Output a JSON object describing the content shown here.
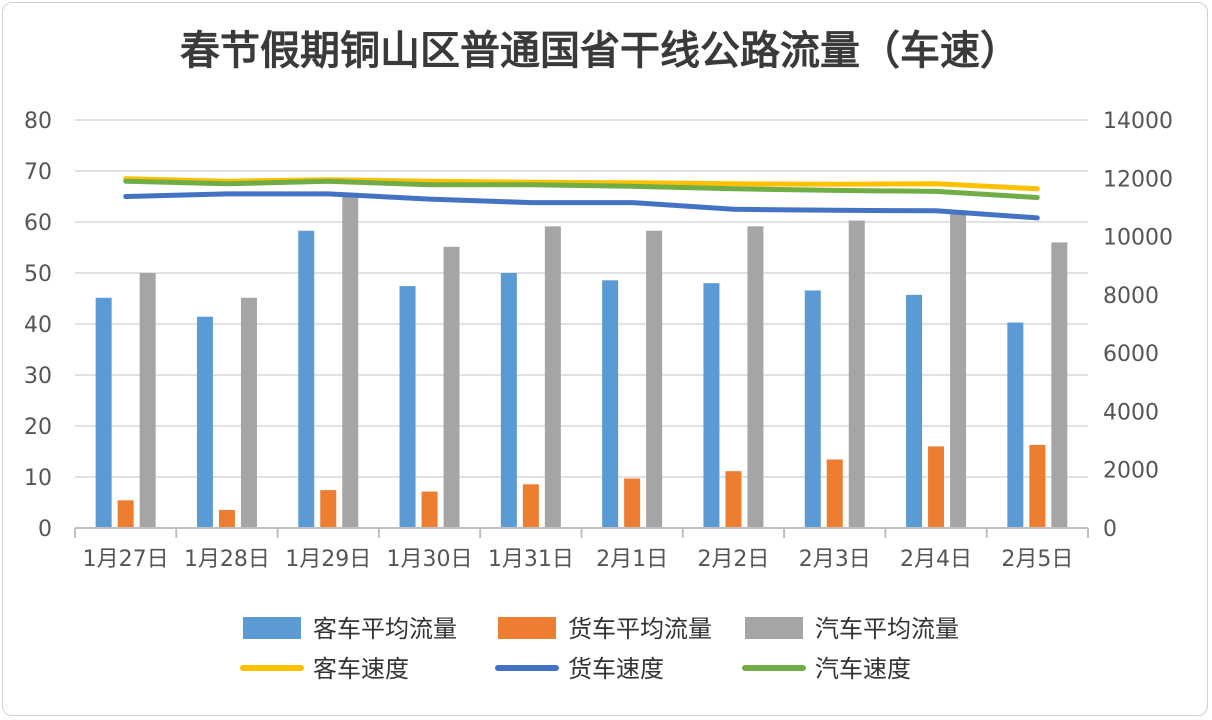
{
  "chart_data": {
    "type": "bar",
    "title": "春节假期铜山区普通国省干线公路流量（车速）",
    "categories": [
      "1月27日",
      "1月28日",
      "1月29日",
      "1月30日",
      "1月31日",
      "2月1日",
      "2月2日",
      "2月3日",
      "2月4日",
      "2月5日"
    ],
    "y_left": {
      "ticks": [
        "0",
        "10",
        "20",
        "30",
        "40",
        "50",
        "60",
        "70",
        "80"
      ],
      "ylim": [
        0,
        80
      ]
    },
    "y_right": {
      "ticks": [
        "0",
        "2000",
        "4000",
        "6000",
        "8000",
        "10000",
        "12000",
        "14000"
      ],
      "ylim": [
        0,
        14000
      ]
    },
    "series": [
      {
        "name": "客车平均流量",
        "kind": "bar",
        "axis": "right",
        "color": "#5b9bd5",
        "values": [
          7900,
          7250,
          10200,
          8300,
          8750,
          8500,
          8400,
          8150,
          8000,
          7050
        ]
      },
      {
        "name": "货车平均流量",
        "kind": "bar",
        "axis": "right",
        "color": "#ed7d31",
        "values": [
          950,
          620,
          1300,
          1250,
          1500,
          1700,
          1950,
          2350,
          2800,
          2850
        ]
      },
      {
        "name": "汽车平均流量",
        "kind": "bar",
        "axis": "right",
        "color": "#a5a5a5",
        "values": [
          8750,
          7900,
          11500,
          9650,
          10350,
          10200,
          10350,
          10550,
          10800,
          9800
        ]
      },
      {
        "name": "客车速度",
        "kind": "line",
        "axis": "left",
        "color": "#ffc000",
        "values": [
          68.5,
          68.0,
          68.3,
          68.0,
          67.8,
          67.7,
          67.5,
          67.4,
          67.5,
          66.5
        ]
      },
      {
        "name": "货车速度",
        "kind": "line",
        "axis": "left",
        "color": "#4472c4",
        "values": [
          65.0,
          65.5,
          65.5,
          64.5,
          63.8,
          63.8,
          62.5,
          62.3,
          62.2,
          60.8
        ]
      },
      {
        "name": "汽车速度",
        "kind": "line",
        "axis": "left",
        "color": "#70ad47",
        "values": [
          68.0,
          67.5,
          68.0,
          67.3,
          67.3,
          67.0,
          66.5,
          66.2,
          66.0,
          64.8
        ]
      }
    ],
    "legend_position": "bottom",
    "grid": true
  }
}
